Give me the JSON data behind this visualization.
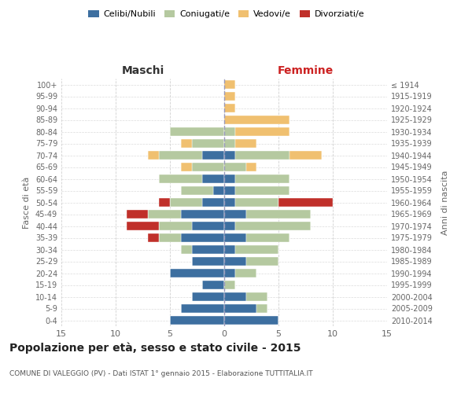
{
  "age_groups": [
    "0-4",
    "5-9",
    "10-14",
    "15-19",
    "20-24",
    "25-29",
    "30-34",
    "35-39",
    "40-44",
    "45-49",
    "50-54",
    "55-59",
    "60-64",
    "65-69",
    "70-74",
    "75-79",
    "80-84",
    "85-89",
    "90-94",
    "95-99",
    "100+"
  ],
  "birth_years": [
    "2010-2014",
    "2005-2009",
    "2000-2004",
    "1995-1999",
    "1990-1994",
    "1985-1989",
    "1980-1984",
    "1975-1979",
    "1970-1974",
    "1965-1969",
    "1960-1964",
    "1955-1959",
    "1950-1954",
    "1945-1949",
    "1940-1944",
    "1935-1939",
    "1930-1934",
    "1925-1929",
    "1920-1924",
    "1915-1919",
    "≤ 1914"
  ],
  "maschi": {
    "celibi": [
      5,
      4,
      3,
      2,
      5,
      3,
      3,
      4,
      3,
      4,
      2,
      1,
      2,
      0,
      2,
      0,
      0,
      0,
      0,
      0,
      0
    ],
    "coniugati": [
      0,
      0,
      0,
      0,
      0,
      0,
      1,
      2,
      3,
      3,
      3,
      3,
      4,
      3,
      4,
      3,
      5,
      0,
      0,
      0,
      0
    ],
    "vedovi": [
      0,
      0,
      0,
      0,
      0,
      0,
      0,
      0,
      0,
      0,
      0,
      0,
      0,
      1,
      1,
      1,
      0,
      0,
      0,
      0,
      0
    ],
    "divorziati": [
      0,
      0,
      0,
      0,
      0,
      0,
      0,
      1,
      3,
      2,
      1,
      0,
      0,
      0,
      0,
      0,
      0,
      0,
      0,
      0,
      0
    ]
  },
  "femmine": {
    "nubili": [
      5,
      3,
      2,
      0,
      1,
      2,
      1,
      2,
      1,
      2,
      1,
      1,
      1,
      0,
      1,
      0,
      0,
      0,
      0,
      0,
      0
    ],
    "coniugate": [
      0,
      1,
      2,
      1,
      2,
      3,
      4,
      4,
      7,
      6,
      4,
      5,
      5,
      2,
      5,
      1,
      1,
      0,
      0,
      0,
      0
    ],
    "vedove": [
      0,
      0,
      0,
      0,
      0,
      0,
      0,
      0,
      0,
      0,
      0,
      0,
      0,
      1,
      3,
      2,
      5,
      6,
      1,
      1,
      1
    ],
    "divorziate": [
      0,
      0,
      0,
      0,
      0,
      0,
      0,
      0,
      0,
      0,
      5,
      0,
      0,
      0,
      0,
      0,
      0,
      0,
      0,
      0,
      0
    ]
  },
  "colors": {
    "celibi_nubili": "#3d6fa0",
    "coniugati": "#b5c9a0",
    "vedovi": "#f0c070",
    "divorziati": "#c0302a"
  },
  "xlim": 15,
  "title": "Popolazione per età, sesso e stato civile - 2015",
  "subtitle": "COMUNE DI VALEGGIO (PV) - Dati ISTAT 1° gennaio 2015 - Elaborazione TUTTITALIA.IT",
  "ylabel_left": "Fasce di età",
  "ylabel_right": "Anni di nascita",
  "xlabel_left": "Maschi",
  "xlabel_right": "Femmine",
  "background_color": "#ffffff",
  "grid_color": "#cccccc"
}
